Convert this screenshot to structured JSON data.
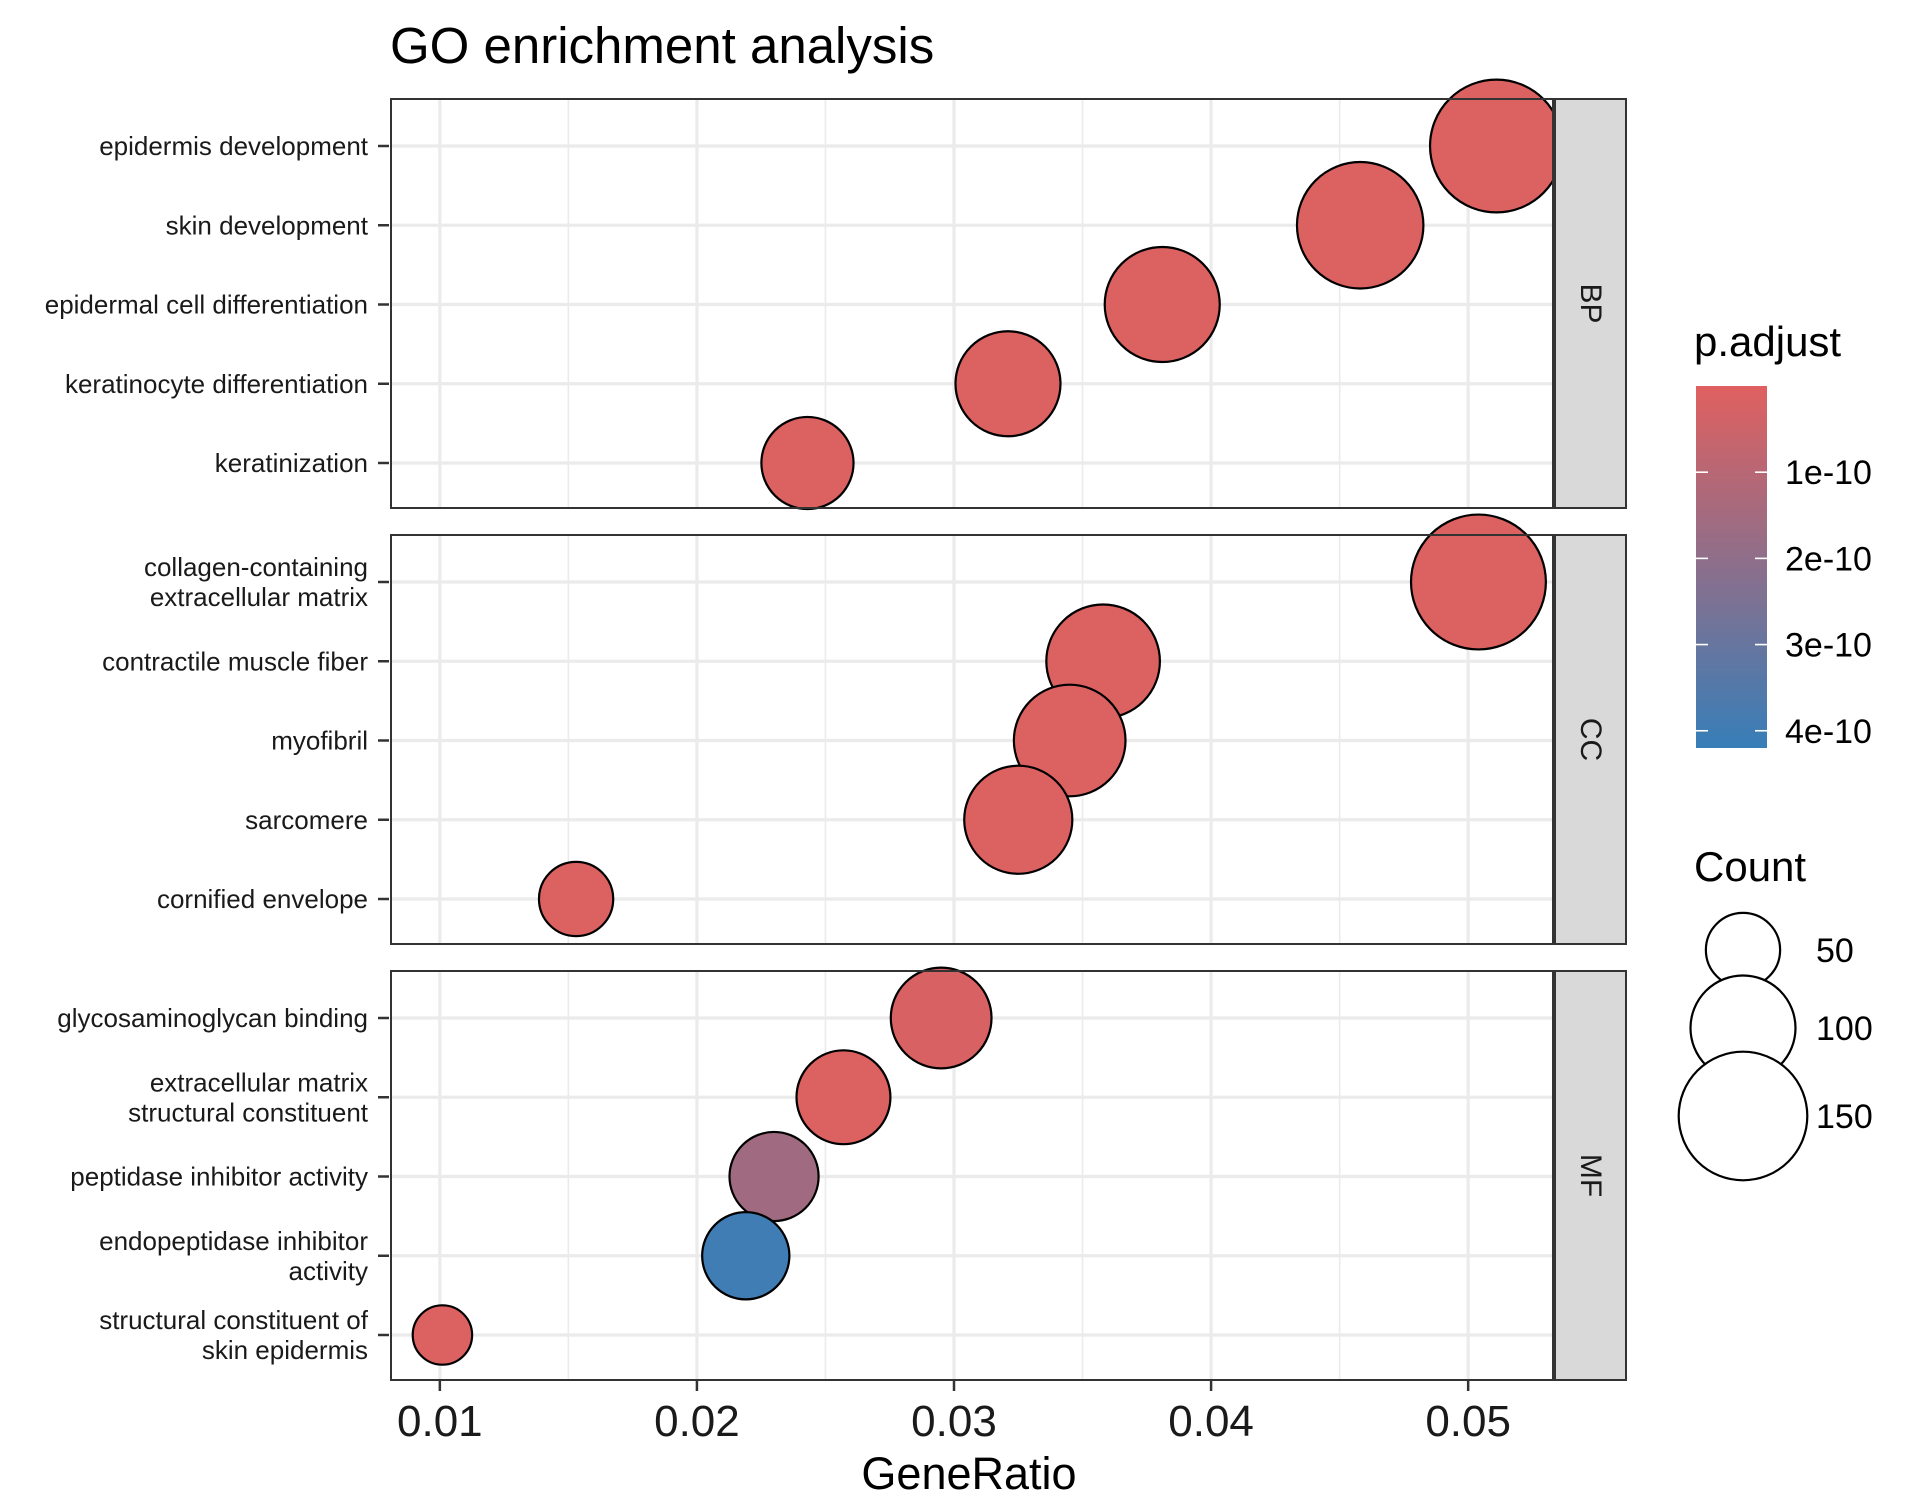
{
  "chart_data": {
    "type": "scatter",
    "title": "GO enrichment analysis",
    "xlabel": "GeneRatio",
    "ylabel": "",
    "xlim": [
      0.0081,
      0.0533
    ],
    "x_ticks": [
      0.01,
      0.02,
      0.03,
      0.04,
      0.05
    ],
    "x_tick_labels": [
      "0.01",
      "0.02",
      "0.03",
      "0.04",
      "0.05"
    ],
    "grid": true,
    "facets": [
      {
        "name": "BP",
        "terms": [
          {
            "label": [
              "epidermis development"
            ],
            "gene_ratio": 0.0511,
            "count": 160,
            "p_adjust": 1e-11
          },
          {
            "label": [
              "skin development"
            ],
            "gene_ratio": 0.0458,
            "count": 145,
            "p_adjust": 1e-11
          },
          {
            "label": [
              "epidermal cell differentiation"
            ],
            "gene_ratio": 0.0381,
            "count": 120,
            "p_adjust": 1e-11
          },
          {
            "label": [
              "keratinocyte differentiation"
            ],
            "gene_ratio": 0.0321,
            "count": 100,
            "p_adjust": 1e-11
          },
          {
            "label": [
              "keratinization"
            ],
            "gene_ratio": 0.0243,
            "count": 77,
            "p_adjust": 1e-11
          }
        ]
      },
      {
        "name": "CC",
        "terms": [
          {
            "label": [
              "collagen-containing",
              "extracellular matrix"
            ],
            "gene_ratio": 0.0504,
            "count": 165,
            "p_adjust": 1e-11
          },
          {
            "label": [
              "contractile muscle fiber"
            ],
            "gene_ratio": 0.0358,
            "count": 117,
            "p_adjust": 1e-11
          },
          {
            "label": [
              "myofibril"
            ],
            "gene_ratio": 0.0345,
            "count": 113,
            "p_adjust": 1e-11
          },
          {
            "label": [
              "sarcomere"
            ],
            "gene_ratio": 0.0325,
            "count": 106,
            "p_adjust": 1e-11
          },
          {
            "label": [
              "cornified envelope"
            ],
            "gene_ratio": 0.0153,
            "count": 50,
            "p_adjust": 1e-11
          }
        ]
      },
      {
        "name": "MF",
        "terms": [
          {
            "label": [
              "glycosaminoglycan binding"
            ],
            "gene_ratio": 0.0295,
            "count": 92,
            "p_adjust": 2e-11
          },
          {
            "label": [
              "extracellular matrix",
              "structural constituent"
            ],
            "gene_ratio": 0.0257,
            "count": 80,
            "p_adjust": 1e-11
          },
          {
            "label": [
              "peptidase inhibitor activity"
            ],
            "gene_ratio": 0.023,
            "count": 72,
            "p_adjust": 1.6e-10
          },
          {
            "label": [
              "endopeptidase inhibitor",
              "activity"
            ],
            "gene_ratio": 0.0219,
            "count": 69,
            "p_adjust": 4e-10
          },
          {
            "label": [
              "structural constituent of",
              "skin epidermis"
            ],
            "gene_ratio": 0.0101,
            "count": 32,
            "p_adjust": 1e-11
          }
        ]
      }
    ],
    "legend": {
      "color": {
        "title": "p.adjust",
        "range": [
          0,
          4.2e-10
        ],
        "breaks": [
          1e-10,
          2e-10,
          3e-10,
          4e-10
        ],
        "labels": [
          "1e-10",
          "2e-10",
          "3e-10",
          "4e-10"
        ],
        "low_color": "#E0605F",
        "high_color": "#377EB8"
      },
      "size": {
        "title": "Count",
        "breaks": [
          50,
          100,
          150
        ],
        "labels": [
          "50",
          "100",
          "150"
        ]
      },
      "position": "right"
    }
  }
}
